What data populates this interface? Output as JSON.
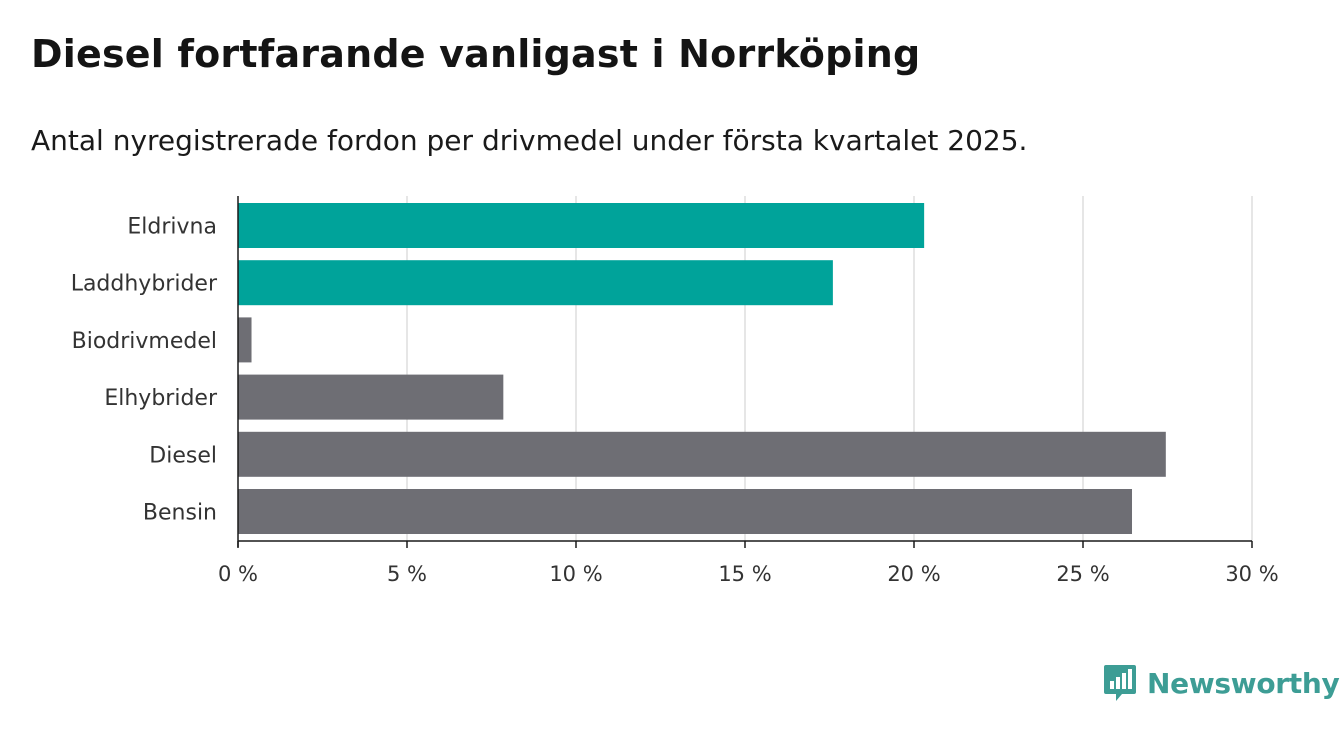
{
  "header": {
    "title": "Diesel fortfarande vanligast i Norrköping",
    "subtitle": "Antal nyregistrerade fordon per drivmedel under första kvartalet 2025."
  },
  "chart_data": {
    "type": "bar",
    "orientation": "horizontal",
    "categories": [
      "Eldrivna",
      "Laddhybrider",
      "Biodrivmedel",
      "Elhybrider",
      "Diesel",
      "Bensin"
    ],
    "values": [
      20.3,
      17.6,
      0.4,
      7.85,
      27.45,
      26.45
    ],
    "colors": [
      "#00a39a",
      "#00a39a",
      "#6e6e74",
      "#6e6e74",
      "#6e6e74",
      "#6e6e74"
    ],
    "x_ticks": [
      "0 %",
      "5 %",
      "10 %",
      "15 %",
      "20 %",
      "25 %",
      "30 %"
    ],
    "xlim": [
      0,
      30
    ],
    "grid": true,
    "unit": "%"
  },
  "brand": {
    "name": "Newsworthy",
    "color": "#3d9d95",
    "icon": "bar-chart-bubble-icon"
  }
}
